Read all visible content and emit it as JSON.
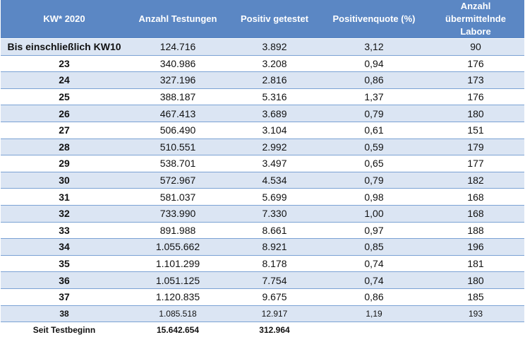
{
  "header": {
    "kw": "KW* 2020",
    "tests": "Anzahl Testungen",
    "positive": "Positiv getestet",
    "quote": "Positivenquote (%)",
    "labs": "Anzahl übermittelnde Labore"
  },
  "rows": [
    {
      "kw": "Bis einschließlich KW10",
      "tests": "124.716",
      "positive": "3.892",
      "quote": "3,12",
      "labs": "90"
    },
    {
      "kw": "23",
      "tests": "340.986",
      "positive": "3.208",
      "quote": "0,94",
      "labs": "176"
    },
    {
      "kw": "24",
      "tests": "327.196",
      "positive": "2.816",
      "quote": "0,86",
      "labs": "173"
    },
    {
      "kw": "25",
      "tests": "388.187",
      "positive": "5.316",
      "quote": "1,37",
      "labs": "176"
    },
    {
      "kw": "26",
      "tests": "467.413",
      "positive": "3.689",
      "quote": "0,79",
      "labs": "180"
    },
    {
      "kw": "27",
      "tests": "506.490",
      "positive": "3.104",
      "quote": "0,61",
      "labs": "151"
    },
    {
      "kw": "28",
      "tests": "510.551",
      "positive": "2.992",
      "quote": "0,59",
      "labs": "179"
    },
    {
      "kw": "29",
      "tests": "538.701",
      "positive": "3.497",
      "quote": "0,65",
      "labs": "177"
    },
    {
      "kw": "30",
      "tests": "572.967",
      "positive": "4.534",
      "quote": "0,79",
      "labs": "182"
    },
    {
      "kw": "31",
      "tests": "581.037",
      "positive": "5.699",
      "quote": "0,98",
      "labs": "168"
    },
    {
      "kw": "32",
      "tests": "733.990",
      "positive": "7.330",
      "quote": "1,00",
      "labs": "168"
    },
    {
      "kw": "33",
      "tests": "891.988",
      "positive": "8.661",
      "quote": "0,97",
      "labs": "188"
    },
    {
      "kw": "34",
      "tests": "1.055.662",
      "positive": "8.921",
      "quote": "0,85",
      "labs": "196"
    },
    {
      "kw": "35",
      "tests": "1.101.299",
      "positive": "8.178",
      "quote": "0,74",
      "labs": "181"
    },
    {
      "kw": "36",
      "tests": "1.051.125",
      "positive": "7.754",
      "quote": "0,74",
      "labs": "180"
    },
    {
      "kw": "37",
      "tests": "1.120.835",
      "positive": "9.675",
      "quote": "0,86",
      "labs": "185"
    },
    {
      "kw": "38",
      "tests": "1.085.518",
      "positive": "12.917",
      "quote": "1,19",
      "labs": "193"
    }
  ],
  "total": {
    "label": "Seit Testbeginn",
    "tests": "15.642.654",
    "positive": "312.964"
  },
  "colors": {
    "header_bg": "#5b87c4",
    "band": "#dbe5f3",
    "rule": "#7ba2d4"
  }
}
